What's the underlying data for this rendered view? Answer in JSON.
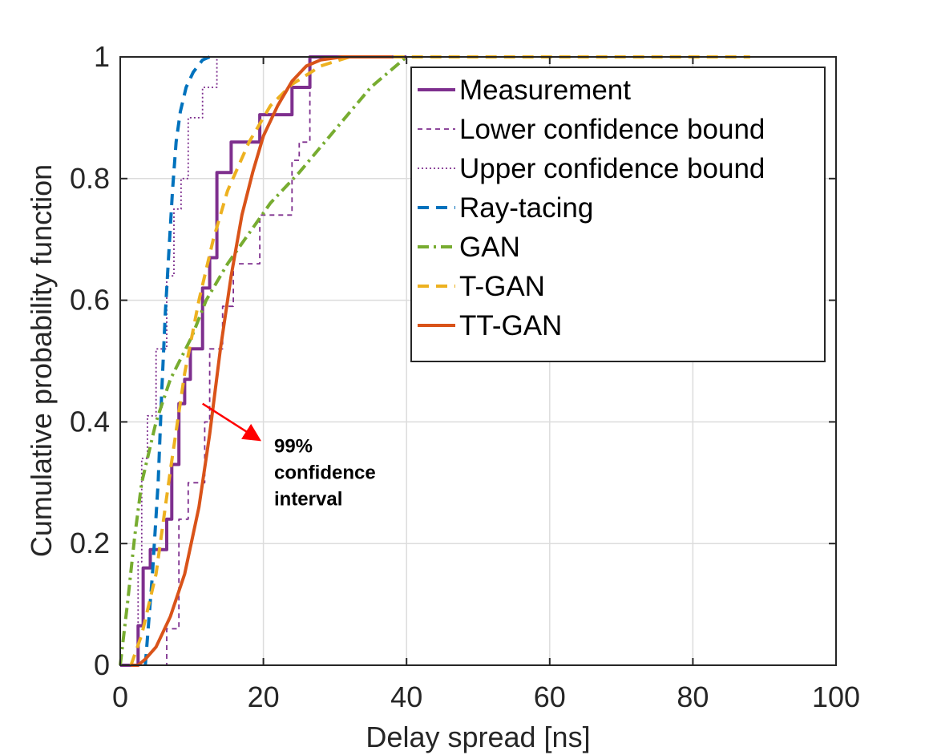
{
  "chart_data": {
    "type": "line",
    "title": "",
    "xlabel": "Delay spread [ns]",
    "ylabel": "Cumulative probability function",
    "xlim": [
      0,
      100
    ],
    "ylim": [
      0,
      1
    ],
    "xticks": [
      0,
      20,
      40,
      60,
      80,
      100
    ],
    "yticks": [
      0,
      0.2,
      0.4,
      0.6,
      0.8,
      1
    ],
    "xtick_labels": [
      "0",
      "20",
      "40",
      "60",
      "80",
      "100"
    ],
    "ytick_labels": [
      "0",
      "0.2",
      "0.4",
      "0.6",
      "0.8",
      "1"
    ],
    "grid": true,
    "legend_position": "top-right",
    "series": [
      {
        "name": "Measurement",
        "color": "#7E2F8E",
        "style": "solid",
        "step": true,
        "x": [
          0,
          2.5,
          2.5,
          3.2,
          3.2,
          4.2,
          4.2,
          6.5,
          6.5,
          7.2,
          7.2,
          8.2,
          8.2,
          9,
          9,
          9.8,
          9.8,
          11.5,
          11.5,
          12.5,
          12.5,
          13.5,
          13.5,
          15.5,
          15.5,
          19.5,
          19.5,
          24,
          24,
          26.5,
          26.5,
          40
        ],
        "y": [
          0,
          0,
          0.065,
          0.065,
          0.16,
          0.16,
          0.19,
          0.19,
          0.24,
          0.24,
          0.33,
          0.33,
          0.43,
          0.43,
          0.47,
          0.47,
          0.52,
          0.52,
          0.62,
          0.62,
          0.67,
          0.67,
          0.81,
          0.81,
          0.86,
          0.86,
          0.905,
          0.905,
          0.95,
          0.95,
          1,
          1
        ]
      },
      {
        "name": "Lower confidence bound",
        "color": "#7E2F8E",
        "style": "dashed",
        "step": true,
        "x": [
          0,
          6.5,
          6.5,
          8.2,
          8.2,
          9.5,
          9.5,
          11.8,
          11.8,
          12.5,
          12.5,
          14.3,
          14.3,
          15.8,
          15.8,
          19.5,
          19.5,
          24,
          24,
          25,
          25,
          26.5,
          26.5,
          40
        ],
        "y": [
          0,
          0,
          0.06,
          0.06,
          0.24,
          0.24,
          0.3,
          0.3,
          0.4,
          0.4,
          0.52,
          0.52,
          0.59,
          0.59,
          0.66,
          0.66,
          0.74,
          0.74,
          0.83,
          0.83,
          0.86,
          0.86,
          1,
          1
        ]
      },
      {
        "name": "Upper confidence bound",
        "color": "#7E2F8E",
        "style": "dotted",
        "step": true,
        "x": [
          0,
          2.5,
          2.5,
          3.0,
          3.0,
          3.8,
          3.8,
          5.0,
          5.0,
          6.5,
          6.5,
          7.5,
          7.5,
          8.5,
          8.5,
          9.5,
          9.5,
          11.5,
          11.5,
          13.5,
          13.5,
          40
        ],
        "y": [
          0,
          0,
          0.17,
          0.17,
          0.34,
          0.34,
          0.41,
          0.41,
          0.52,
          0.52,
          0.64,
          0.64,
          0.75,
          0.75,
          0.8,
          0.8,
          0.9,
          0.9,
          0.95,
          0.95,
          1,
          1
        ]
      },
      {
        "name": "Ray-tacing",
        "color": "#0072BD",
        "style": "dashed",
        "step": false,
        "x": [
          3.5,
          4.5,
          5.3,
          5.8,
          6.3,
          6.8,
          7.3,
          7.8,
          8.4,
          9.2,
          10.2,
          11.5,
          12.5
        ],
        "y": [
          0,
          0.15,
          0.3,
          0.45,
          0.58,
          0.68,
          0.78,
          0.86,
          0.91,
          0.95,
          0.975,
          0.995,
          1
        ]
      },
      {
        "name": "GAN",
        "color": "#77AC30",
        "style": "dashdot",
        "step": false,
        "x": [
          0,
          1,
          2,
          3,
          5,
          7,
          10,
          12,
          15,
          18,
          21,
          25,
          30,
          35,
          40
        ],
        "y": [
          0,
          0.1,
          0.21,
          0.3,
          0.4,
          0.47,
          0.54,
          0.6,
          0.66,
          0.71,
          0.76,
          0.81,
          0.88,
          0.95,
          1
        ]
      },
      {
        "name": "T-GAN",
        "color": "#EDB120",
        "style": "dashed",
        "step": false,
        "x": [
          1.5,
          3,
          5,
          7,
          9,
          11,
          13,
          15,
          18,
          21,
          24,
          28,
          32,
          37,
          45,
          60,
          70,
          80,
          88
        ],
        "y": [
          0,
          0.05,
          0.15,
          0.32,
          0.48,
          0.6,
          0.7,
          0.78,
          0.86,
          0.92,
          0.955,
          0.985,
          1,
          1,
          1,
          1,
          1,
          1,
          1
        ]
      },
      {
        "name": "TT-GAN",
        "color": "#D95319",
        "style": "solid",
        "step": false,
        "x": [
          1.5,
          2.5,
          3.5,
          5,
          7,
          9,
          11,
          12.5,
          14,
          15.5,
          17,
          18.5,
          20,
          22,
          24,
          26,
          28,
          31,
          35,
          38
        ],
        "y": [
          0,
          0,
          0.01,
          0.03,
          0.08,
          0.15,
          0.26,
          0.38,
          0.52,
          0.64,
          0.74,
          0.81,
          0.87,
          0.92,
          0.96,
          0.985,
          0.995,
          1,
          1,
          1
        ]
      }
    ],
    "annotation": {
      "lines": [
        "99%",
        "confidence",
        "interval"
      ],
      "arrow_color": "#FF0000",
      "arrow_from": [
        11.5,
        0.43
      ],
      "arrow_to": [
        19.5,
        0.37
      ],
      "text_at": [
        21.5,
        0.35
      ]
    }
  }
}
